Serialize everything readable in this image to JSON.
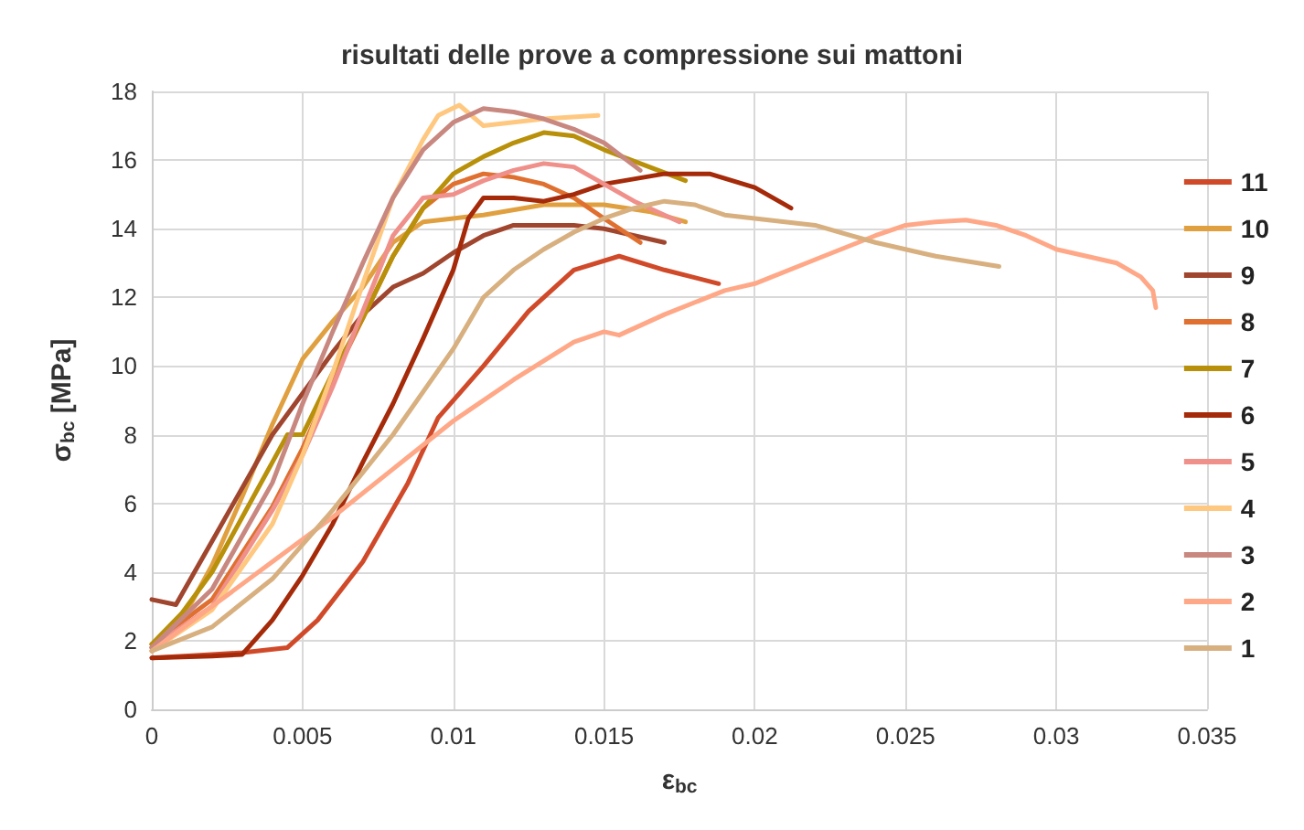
{
  "chart_data": {
    "type": "line",
    "title": "risultati delle prove a compressione sui mattoni",
    "xlabel": "ε$_{bc}$",
    "ylabel": "σ$_{bc}$ [MPa]",
    "xlim": [
      0,
      0.035
    ],
    "xticks": [
      0,
      0.005,
      0.01,
      0.015,
      0.02,
      0.025,
      0.03,
      0.035
    ],
    "ylim": [
      0,
      18
    ],
    "yticks": [
      0,
      2,
      4,
      6,
      8,
      10,
      12,
      14,
      16,
      18
    ],
    "grid": true,
    "legend": "right",
    "marker": "none",
    "line_style": "solid",
    "series": [
      {
        "name": "11",
        "color": "#d04a2a",
        "x": [
          0,
          0.002,
          0.003,
          0.0045,
          0.0055,
          0.007,
          0.0085,
          0.0095,
          0.011,
          0.0125,
          0.014,
          0.0155,
          0.017,
          0.0188
        ],
        "values": [
          1.5,
          1.6,
          1.65,
          1.8,
          2.6,
          4.3,
          6.6,
          8.5,
          10.0,
          11.6,
          12.8,
          13.2,
          12.8,
          12.4
        ]
      },
      {
        "name": "10",
        "color": "#e0a040",
        "x": [
          0,
          0.001,
          0.002,
          0.003,
          0.004,
          0.005,
          0.006,
          0.007,
          0.008,
          0.009,
          0.01,
          0.011,
          0.013,
          0.015,
          0.0165,
          0.0177
        ],
        "values": [
          1.8,
          2.6,
          4.2,
          6.2,
          8.3,
          10.2,
          11.3,
          12.3,
          13.6,
          14.2,
          14.3,
          14.4,
          14.7,
          14.7,
          14.5,
          14.2
        ]
      },
      {
        "name": "9",
        "color": "#a0452e",
        "x": [
          0,
          0.0008,
          0.002,
          0.004,
          0.006,
          0.007,
          0.008,
          0.009,
          0.01,
          0.011,
          0.012,
          0.014,
          0.015,
          0.016,
          0.017
        ],
        "values": [
          3.2,
          3.05,
          4.9,
          8.0,
          10.4,
          11.5,
          12.3,
          12.7,
          13.3,
          13.8,
          14.1,
          14.1,
          14.0,
          13.8,
          13.6
        ]
      },
      {
        "name": "8",
        "color": "#e07030",
        "x": [
          0,
          0.002,
          0.004,
          0.005,
          0.006,
          0.007,
          0.008,
          0.009,
          0.01,
          0.011,
          0.012,
          0.013,
          0.014,
          0.015,
          0.0162
        ],
        "values": [
          1.9,
          3.2,
          5.9,
          7.6,
          9.6,
          11.4,
          13.2,
          14.6,
          15.3,
          15.6,
          15.5,
          15.3,
          14.9,
          14.3,
          13.6
        ]
      },
      {
        "name": "7",
        "color": "#b8900a",
        "x": [
          0,
          0.001,
          0.002,
          0.003,
          0.004,
          0.0045,
          0.005,
          0.006,
          0.007,
          0.008,
          0.009,
          0.01,
          0.011,
          0.012,
          0.013,
          0.014,
          0.015,
          0.0165,
          0.0177
        ],
        "values": [
          1.9,
          2.8,
          4.0,
          5.6,
          7.2,
          8.0,
          8.0,
          9.8,
          11.4,
          13.2,
          14.6,
          15.6,
          16.1,
          16.5,
          16.8,
          16.7,
          16.3,
          15.8,
          15.4
        ]
      },
      {
        "name": "6",
        "color": "#a52a0a",
        "x": [
          0,
          0.002,
          0.003,
          0.004,
          0.005,
          0.006,
          0.007,
          0.008,
          0.009,
          0.01,
          0.0105,
          0.011,
          0.012,
          0.013,
          0.014,
          0.015,
          0.017,
          0.0185,
          0.02,
          0.0212
        ],
        "values": [
          1.5,
          1.55,
          1.6,
          2.6,
          3.9,
          5.4,
          7.2,
          8.9,
          10.8,
          12.8,
          14.3,
          14.9,
          14.9,
          14.8,
          15.0,
          15.3,
          15.6,
          15.6,
          15.2,
          14.6
        ]
      },
      {
        "name": "5",
        "color": "#f0908a",
        "x": [
          0,
          0.002,
          0.004,
          0.005,
          0.006,
          0.007,
          0.008,
          0.009,
          0.01,
          0.011,
          0.012,
          0.013,
          0.014,
          0.015,
          0.016,
          0.0175
        ],
        "values": [
          1.8,
          3.0,
          5.8,
          7.4,
          9.4,
          11.6,
          13.8,
          14.9,
          15.0,
          15.4,
          15.7,
          15.9,
          15.8,
          15.3,
          14.8,
          14.2
        ]
      },
      {
        "name": "4",
        "color": "#ffc880",
        "x": [
          0,
          0.002,
          0.004,
          0.005,
          0.006,
          0.007,
          0.008,
          0.009,
          0.0095,
          0.0102,
          0.011,
          0.012,
          0.013,
          0.0148
        ],
        "values": [
          1.7,
          2.9,
          5.4,
          7.4,
          9.8,
          12.4,
          14.9,
          16.6,
          17.3,
          17.6,
          17.0,
          17.1,
          17.2,
          17.3
        ]
      },
      {
        "name": "3",
        "color": "#c88880",
        "x": [
          0,
          0.002,
          0.004,
          0.005,
          0.006,
          0.007,
          0.008,
          0.009,
          0.01,
          0.011,
          0.012,
          0.013,
          0.014,
          0.015,
          0.0162
        ],
        "values": [
          1.8,
          3.5,
          6.6,
          8.9,
          11.0,
          13.0,
          14.9,
          16.3,
          17.1,
          17.5,
          17.4,
          17.2,
          16.9,
          16.5,
          15.7
        ]
      },
      {
        "name": "2",
        "color": "#ffa888",
        "x": [
          0,
          0.002,
          0.004,
          0.006,
          0.008,
          0.01,
          0.012,
          0.014,
          0.015,
          0.0155,
          0.017,
          0.019,
          0.02,
          0.022,
          0.024,
          0.025,
          0.026,
          0.027,
          0.028,
          0.029,
          0.03,
          0.031,
          0.032,
          0.0328,
          0.0332,
          0.0333
        ],
        "values": [
          1.7,
          3.0,
          4.3,
          5.6,
          7.0,
          8.4,
          9.6,
          10.7,
          11.0,
          10.9,
          11.5,
          12.2,
          12.4,
          13.1,
          13.8,
          14.1,
          14.2,
          14.25,
          14.1,
          13.8,
          13.4,
          13.2,
          13.0,
          12.6,
          12.2,
          11.7
        ]
      },
      {
        "name": "1",
        "color": "#d8b080",
        "x": [
          0,
          0.002,
          0.004,
          0.006,
          0.008,
          0.01,
          0.011,
          0.012,
          0.013,
          0.014,
          0.015,
          0.016,
          0.017,
          0.018,
          0.019,
          0.02,
          0.022,
          0.024,
          0.026,
          0.0281
        ],
        "values": [
          1.7,
          2.4,
          3.8,
          5.8,
          8.0,
          10.5,
          12.0,
          12.8,
          13.4,
          13.9,
          14.3,
          14.6,
          14.8,
          14.7,
          14.4,
          14.3,
          14.1,
          13.6,
          13.2,
          12.9
        ]
      }
    ]
  }
}
